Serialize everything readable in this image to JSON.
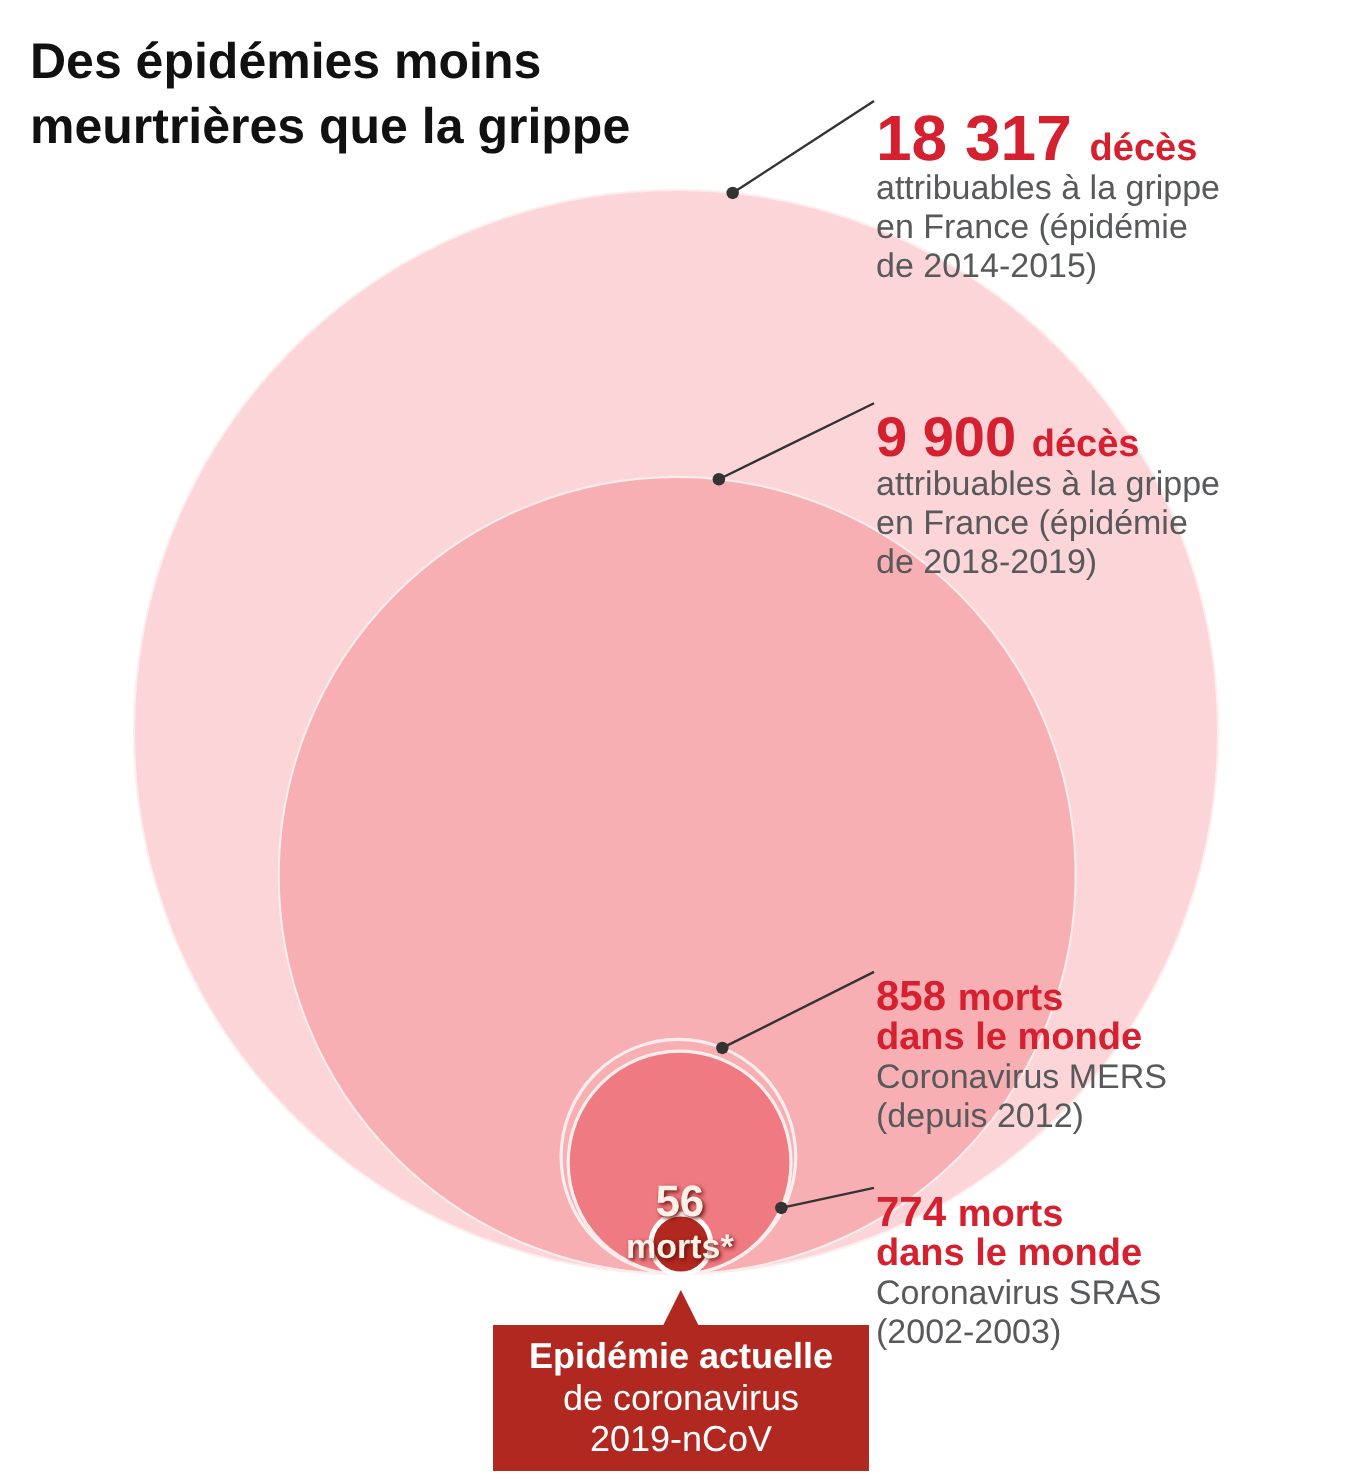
{
  "chart_data": {
    "type": "other",
    "title": "Des épidémies moins\nmeurtrières que la grippe",
    "categories": [
      "attribuables à la grippe\nen France (épidémie\nde 2014-2015)",
      "attribuables à la grippe\nen France (épidémie\nde 2018-2019)",
      "Coronavirus MERS\n(depuis 2012)",
      "Coronavirus SRAS\n(2002-2003)",
      "Epidémie actuelle\nde coronavirus\n2019-nCoV"
    ],
    "values": [
      18317,
      9900,
      858,
      774,
      56
    ],
    "value_labels": [
      "18 317 décès",
      "9 900 décès",
      "858 morts\ndans le monde",
      "774 morts\ndans le monde",
      "56\nmorts*"
    ],
    "colors": [
      "#fcd5d9",
      "#f8afb4",
      "#f8afb4",
      "#ef7a81",
      "#b0281f"
    ]
  }
}
